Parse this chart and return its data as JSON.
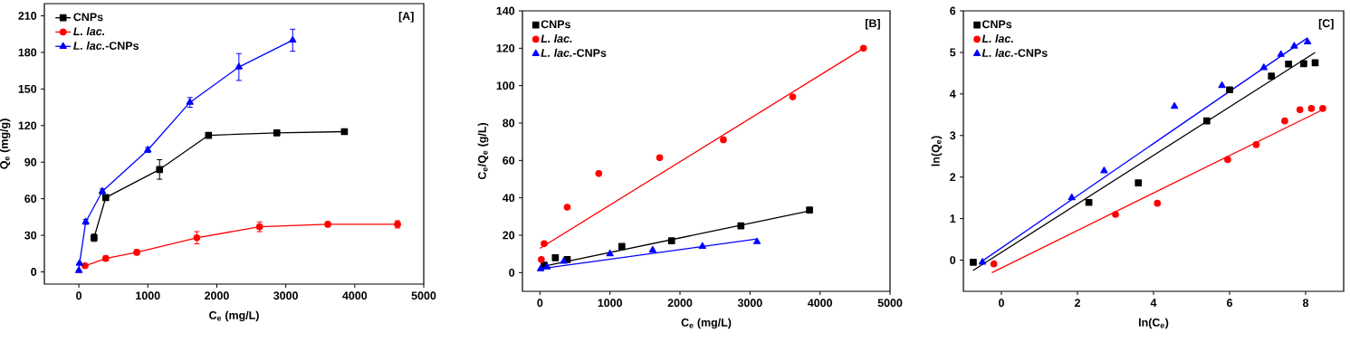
{
  "chart_data": [
    {
      "type": "line",
      "xlabel": "C$_{e}$ (mg/L)",
      "ylabel": "Q$_{e}$ (mg/g)",
      "annotations": [
        "[A]"
      ],
      "xlim": [
        -500,
        5000
      ],
      "ylim": [
        -10,
        220
      ],
      "xticks": [
        0,
        1000,
        2000,
        3000,
        4000,
        5000
      ],
      "yticks": [
        0,
        30,
        60,
        90,
        120,
        150,
        180,
        210
      ],
      "legend": "top left",
      "series": [
        {
          "name": "CNPs",
          "color": "#000000",
          "marker": "square",
          "x": [
            220,
            390,
            1170,
            1880,
            2870,
            3850
          ],
          "values": [
            28,
            61,
            84,
            112,
            114,
            115
          ],
          "errors": [
            3,
            2,
            8,
            2,
            2,
            2
          ]
        },
        {
          "name": "*L. lac.*",
          "color": "#ff0000",
          "marker": "circle",
          "x": [
            90,
            390,
            840,
            1710,
            2620,
            3610,
            4620
          ],
          "values": [
            5,
            11,
            16,
            28,
            37,
            39,
            39
          ],
          "errors": [
            null,
            2,
            2,
            5,
            4,
            2,
            3
          ]
        },
        {
          "name": "*L. lac.*-CNPs",
          "color": "#0000ff",
          "marker": "triangle",
          "x": [
            0,
            10,
            100,
            340,
            1000,
            1610,
            2320,
            3100
          ],
          "values": [
            1,
            7,
            41,
            66,
            100,
            139,
            168,
            190
          ],
          "errors": [
            null,
            null,
            2,
            2,
            2,
            4,
            11,
            9
          ]
        }
      ]
    },
    {
      "type": "scatter",
      "xlabel": "C$_{e}$ (mg/L)",
      "ylabel": "C$_{e}$/Q$_{e}$ (g/L)",
      "annotations": [
        "[B]"
      ],
      "xlim": [
        -250,
        5000
      ],
      "ylim": [
        -10,
        140
      ],
      "xticks": [
        0,
        1000,
        2000,
        3000,
        4000,
        5000
      ],
      "yticks": [
        0,
        20,
        40,
        60,
        80,
        100,
        120,
        140
      ],
      "legend": "top left",
      "series": [
        {
          "name": "CNPs",
          "color": "#000000",
          "marker": "square",
          "x": [
            60,
            220,
            390,
            1170,
            1880,
            2870,
            3850
          ],
          "values": [
            4,
            8,
            7,
            14,
            17,
            25,
            33.5
          ]
        },
        {
          "name": "*L. lac.*",
          "color": "#ff0000",
          "marker": "circle",
          "x": [
            20,
            60,
            390,
            840,
            1710,
            2620,
            3610,
            4620
          ],
          "values": [
            7,
            15.5,
            35,
            53,
            61.5,
            71,
            94,
            120
          ]
        },
        {
          "name": "*L. lac.*-CNPs",
          "color": "#0000ff",
          "marker": "triangle",
          "x": [
            10,
            100,
            340,
            1000,
            1610,
            2320,
            3100
          ],
          "values": [
            2,
            3,
            6,
            10,
            12,
            14,
            16.5
          ]
        },
        {
          "type": "line",
          "color": "#000000",
          "marker": "none",
          "x": [
            0,
            3850
          ],
          "values": [
            3,
            33
          ]
        },
        {
          "type": "line",
          "color": "#ff0000",
          "marker": "none",
          "x": [
            0,
            4620
          ],
          "values": [
            13,
            120
          ]
        },
        {
          "type": "line",
          "color": "#0000ff",
          "marker": "none",
          "x": [
            0,
            3100
          ],
          "values": [
            2,
            18
          ]
        }
      ]
    },
    {
      "type": "scatter",
      "xlabel": "ln(C$_{e}$)",
      "ylabel": "ln(Q$_{e}$)",
      "annotations": [
        "[C]"
      ],
      "xlim": [
        -1,
        9
      ],
      "ylim": [
        -0.75,
        6
      ],
      "xticks": [
        0,
        2,
        4,
        6,
        8
      ],
      "yticks": [
        0,
        1,
        2,
        3,
        4,
        5,
        6
      ],
      "legend": "top left",
      "series": [
        {
          "name": "CNPs",
          "color": "#000000",
          "marker": "square",
          "x": [
            -0.74,
            2.3,
            3.6,
            5.4,
            6,
            7.1,
            7.55,
            7.95,
            8.25
          ],
          "values": [
            -0.05,
            1.39,
            1.86,
            3.35,
            4.1,
            4.43,
            4.72,
            4.73,
            4.75
          ]
        },
        {
          "name": "*L. lac.*",
          "color": "#ff0000",
          "marker": "circle",
          "x": [
            -0.2,
            3.0,
            4.1,
            5.95,
            6.7,
            7.45,
            7.85,
            8.15,
            8.45
          ],
          "values": [
            -0.09,
            1.1,
            1.37,
            2.42,
            2.78,
            3.35,
            3.62,
            3.65,
            3.65
          ]
        },
        {
          "name": "*L. lac.*-CNPs",
          "color": "#0000ff",
          "marker": "triangle",
          "x": [
            -0.5,
            1.85,
            2.7,
            4.55,
            5.8,
            6.9,
            7.35,
            7.7,
            8.05
          ],
          "values": [
            -0.05,
            1.5,
            2.15,
            3.7,
            4.2,
            4.63,
            4.95,
            5.15,
            5.25
          ]
        },
        {
          "type": "line",
          "color": "#000000",
          "marker": "none",
          "x": [
            -0.75,
            8.25
          ],
          "values": [
            -0.25,
            5.0
          ]
        },
        {
          "type": "line",
          "color": "#ff0000",
          "marker": "none",
          "x": [
            -0.25,
            8.4
          ],
          "values": [
            -0.3,
            3.6
          ]
        },
        {
          "type": "line",
          "color": "#0000ff",
          "marker": "none",
          "x": [
            -0.55,
            8.05
          ],
          "values": [
            -0.05,
            5.35
          ]
        }
      ]
    }
  ]
}
